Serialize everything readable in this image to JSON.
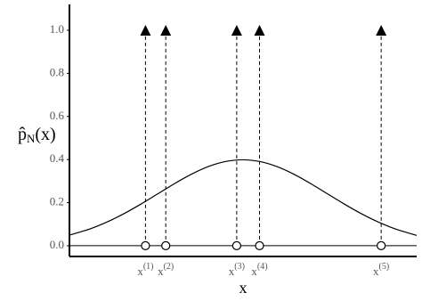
{
  "chart_data": {
    "type": "density",
    "y_label": {
      "base": "p̂",
      "sub": "N",
      "rest": "(x)"
    },
    "x_label": "x",
    "xlim": [
      -2.05,
      2.06
    ],
    "ylim": [
      -0.05,
      1.12
    ],
    "yticks": [
      {
        "value": 0,
        "label": "0.0"
      },
      {
        "value": 0.2,
        "label": "0.2"
      },
      {
        "value": 0.4,
        "label": "0.4"
      },
      {
        "value": 0.6,
        "label": "0.6"
      },
      {
        "value": 0.8,
        "label": "0.8"
      },
      {
        "value": 1,
        "label": "1.0"
      }
    ],
    "samples": {
      "x": [
        -1.15,
        -0.91,
        -0.07,
        0.2,
        1.64
      ],
      "values": [
        1,
        1,
        1,
        1,
        1
      ],
      "labels": [
        {
          "base": "x",
          "sup": "(1)"
        },
        {
          "base": "x",
          "sup": "(2)"
        },
        {
          "base": "x",
          "sup": "(3)"
        },
        {
          "base": "x",
          "sup": "(4)"
        },
        {
          "base": "x",
          "sup": "(5)"
        }
      ]
    },
    "curve": {
      "color": "#000000",
      "x": [
        -2.05,
        -1.8,
        -1.6,
        -1.4,
        -1.2,
        -1.0,
        -0.8,
        -0.6,
        -0.4,
        -0.2,
        0,
        0.2,
        0.4,
        0.6,
        0.8,
        1.0,
        1.2,
        1.4,
        1.6,
        1.8,
        2.06
      ],
      "values": [
        0.0488,
        0.079,
        0.1109,
        0.1497,
        0.1942,
        0.242,
        0.2897,
        0.3332,
        0.3683,
        0.391,
        0.3989,
        0.391,
        0.3683,
        0.3332,
        0.2897,
        0.242,
        0.1942,
        0.1497,
        0.1109,
        0.079,
        0.0478
      ]
    }
  }
}
